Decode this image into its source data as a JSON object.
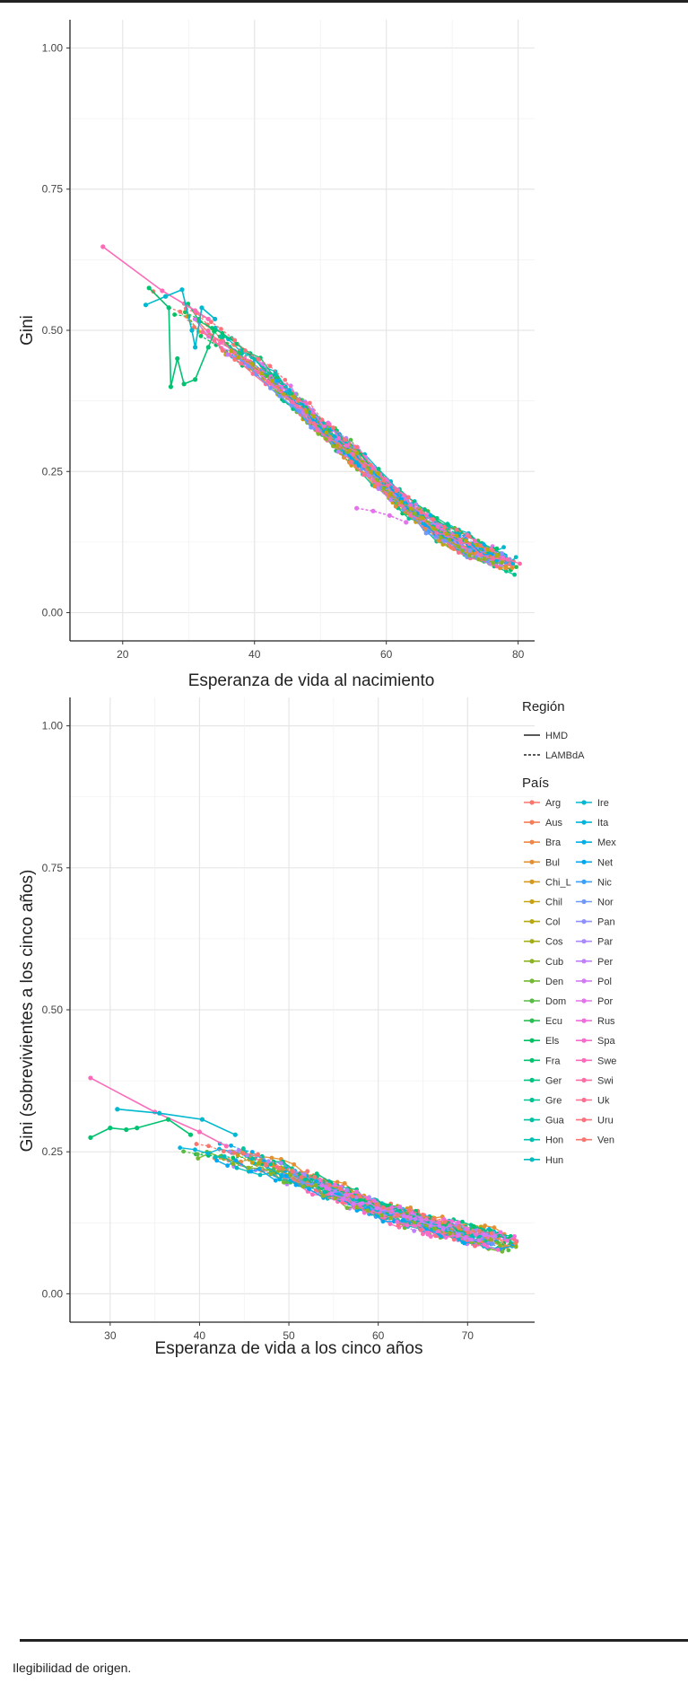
{
  "footnote": "Ilegibilidad de origen.",
  "colors": {
    "Arg": "#F8766D",
    "Aus": "#F57E59",
    "Bra": "#EE8747",
    "Bul": "#E39032",
    "Chi_L": "#D6991F",
    "Chil": "#C7A112",
    "Col": "#B6A80F",
    "Cos": "#A3AE17",
    "Cub": "#8DB325",
    "Den": "#74B834",
    "Dom": "#57BC43",
    "Ecu": "#2ABF52",
    "Els": "#00C161",
    "Fra": "#00C271",
    "Ger": "#00C381",
    "Gre": "#00C391",
    "Gua": "#00C2A1",
    "Hon": "#00C0B1",
    "Hun": "#00BDC0",
    "Ire": "#00B9CF",
    "Ita": "#00B4DC",
    "Mex": "#00AEE8",
    "Net": "#00A8F2",
    "Nic": "#3AA0F9",
    "Nor": "#6E98FD",
    "Pan": "#8F90FF",
    "Par": "#AA88FF",
    "Per": "#C180FB",
    "Pol": "#D37AF4",
    "Por": "#E373EA",
    "Rus": "#EF6EDC",
    "Spa": "#F86BCB",
    "Swe": "#FD6AB8",
    "Swi": "#FF6BA3",
    "Uk": "#FF6E8F",
    "Uru": "#FD727C",
    "Ven": "#F8766D"
  },
  "legend": {
    "region_title": "Región",
    "region_items": [
      "HMD",
      "LAMBdA"
    ],
    "country_title": "País",
    "countries_col1": [
      "Arg",
      "Aus",
      "Bra",
      "Bul",
      "Chi_L",
      "Chil",
      "Col",
      "Cos",
      "Cub",
      "Den",
      "Dom",
      "Ecu",
      "Els",
      "Fra",
      "Ger",
      "Gre",
      "Gua",
      "Hon",
      "Hun"
    ],
    "countries_col2": [
      "Ire",
      "Ita",
      "Mex",
      "Net",
      "Nic",
      "Nor",
      "Pan",
      "Par",
      "Per",
      "Pol",
      "Por",
      "Rus",
      "Spa",
      "Swe",
      "Swi",
      "Uk",
      "Uru",
      "Ven"
    ]
  },
  "chart_data": [
    {
      "type": "scatter",
      "xlabel": "Esperanza de vida al nacimiento",
      "ylabel": "Gini",
      "xlim": [
        12,
        82.5
      ],
      "ylim": [
        -0.05,
        1.05
      ],
      "xticks": [
        20,
        40,
        60,
        80
      ],
      "yticks": [
        0.0,
        0.25,
        0.5,
        0.75,
        1.0
      ],
      "ytick_labels": [
        "0.00",
        "0.25",
        "0.50",
        "0.75",
        "1.00"
      ],
      "grid": true,
      "trend": [
        [
          17,
          0.65
        ],
        [
          25,
          0.57
        ],
        [
          30,
          0.53
        ],
        [
          35,
          0.48
        ],
        [
          40,
          0.44
        ],
        [
          45,
          0.39
        ],
        [
          50,
          0.33
        ],
        [
          55,
          0.28
        ],
        [
          60,
          0.225
        ],
        [
          65,
          0.17
        ],
        [
          70,
          0.13
        ],
        [
          75,
          0.105
        ],
        [
          80,
          0.085
        ]
      ],
      "spread": 0.018,
      "x_range": [
        24,
        80
      ],
      "labeled_series": [
        {
          "name": "Swe",
          "line": "solid",
          "points": [
            [
              17,
              0.648
            ],
            [
              26,
              0.57
            ],
            [
              31,
              0.535
            ],
            [
              33,
              0.52
            ]
          ]
        },
        {
          "name": "Ire",
          "line": "solid",
          "points": [
            [
              23.5,
              0.545
            ],
            [
              26.5,
              0.56
            ],
            [
              29,
              0.572
            ],
            [
              30.5,
              0.5
            ],
            [
              31,
              0.47
            ],
            [
              32,
              0.54
            ],
            [
              34,
              0.52
            ]
          ]
        },
        {
          "name": "Fra",
          "line": "solid",
          "points": [
            [
              24,
              0.575
            ],
            [
              27,
              0.54
            ],
            [
              27.3,
              0.4
            ],
            [
              28.3,
              0.45
            ],
            [
              29.3,
              0.405
            ],
            [
              31,
              0.413
            ],
            [
              33,
              0.47
            ],
            [
              34,
              0.5
            ]
          ]
        },
        {
          "name": "Por",
          "line": "dotted",
          "points": [
            [
              55.5,
              0.185
            ],
            [
              58,
              0.18
            ],
            [
              60.5,
              0.172
            ],
            [
              63,
              0.16
            ]
          ]
        }
      ],
      "series": [
        {
          "name": "Arg",
          "region": "LAMBdA"
        },
        {
          "name": "Aus",
          "region": "HMD"
        },
        {
          "name": "Bra",
          "region": "LAMBdA"
        },
        {
          "name": "Bul",
          "region": "HMD"
        },
        {
          "name": "Chi_L",
          "region": "LAMBdA"
        },
        {
          "name": "Chil",
          "region": "LAMBdA"
        },
        {
          "name": "Col",
          "region": "LAMBdA"
        },
        {
          "name": "Cos",
          "region": "LAMBdA"
        },
        {
          "name": "Cub",
          "region": "LAMBdA"
        },
        {
          "name": "Den",
          "region": "HMD"
        },
        {
          "name": "Dom",
          "region": "LAMBdA"
        },
        {
          "name": "Ecu",
          "region": "LAMBdA"
        },
        {
          "name": "Els",
          "region": "LAMBdA"
        },
        {
          "name": "Fra",
          "region": "HMD"
        },
        {
          "name": "Ger",
          "region": "HMD"
        },
        {
          "name": "Gre",
          "region": "HMD"
        },
        {
          "name": "Gua",
          "region": "LAMBdA"
        },
        {
          "name": "Hon",
          "region": "LAMBdA"
        },
        {
          "name": "Hun",
          "region": "HMD"
        },
        {
          "name": "Ire",
          "region": "HMD"
        },
        {
          "name": "Ita",
          "region": "HMD"
        },
        {
          "name": "Mex",
          "region": "LAMBdA"
        },
        {
          "name": "Net",
          "region": "HMD"
        },
        {
          "name": "Nic",
          "region": "LAMBdA"
        },
        {
          "name": "Nor",
          "region": "HMD"
        },
        {
          "name": "Pan",
          "region": "LAMBdA"
        },
        {
          "name": "Par",
          "region": "LAMBdA"
        },
        {
          "name": "Per",
          "region": "LAMBdA"
        },
        {
          "name": "Pol",
          "region": "HMD"
        },
        {
          "name": "Por",
          "region": "HMD"
        },
        {
          "name": "Rus",
          "region": "HMD"
        },
        {
          "name": "Spa",
          "region": "HMD"
        },
        {
          "name": "Swe",
          "region": "HMD"
        },
        {
          "name": "Swi",
          "region": "HMD"
        },
        {
          "name": "Uk",
          "region": "HMD"
        },
        {
          "name": "Uru",
          "region": "LAMBdA"
        },
        {
          "name": "Ven",
          "region": "LAMBdA"
        }
      ]
    },
    {
      "type": "scatter",
      "xlabel": "Esperanza de vida a los cinco años",
      "ylabel": "Gini (sobrevivientes a los cinco años)",
      "xlim": [
        25.5,
        77.5
      ],
      "ylim": [
        -0.05,
        1.05
      ],
      "xticks": [
        30,
        40,
        50,
        60,
        70
      ],
      "yticks": [
        0.0,
        0.25,
        0.5,
        0.75,
        1.0
      ],
      "ytick_labels": [
        "0.00",
        "0.25",
        "0.50",
        "0.75",
        "1.00"
      ],
      "grid": true,
      "legend_position": "right",
      "trend": [
        [
          37,
          0.265
        ],
        [
          42,
          0.25
        ],
        [
          46,
          0.235
        ],
        [
          50,
          0.21
        ],
        [
          55,
          0.18
        ],
        [
          60,
          0.15
        ],
        [
          65,
          0.125
        ],
        [
          70,
          0.105
        ],
        [
          75.5,
          0.087
        ]
      ],
      "spread": 0.017,
      "x_range": [
        38,
        75.5
      ],
      "labeled_series": [
        {
          "name": "Swe",
          "line": "solid",
          "points": [
            [
              27.8,
              0.38
            ],
            [
              35,
              0.32
            ],
            [
              40,
              0.285
            ],
            [
              43,
              0.26
            ]
          ]
        },
        {
          "name": "Ire",
          "line": "solid",
          "points": [
            [
              30.8,
              0.325
            ],
            [
              35.5,
              0.318
            ],
            [
              40.3,
              0.307
            ],
            [
              44,
              0.28
            ]
          ]
        },
        {
          "name": "Fra",
          "line": "solid",
          "points": [
            [
              27.8,
              0.275
            ],
            [
              30,
              0.292
            ],
            [
              31.8,
              0.289
            ],
            [
              33,
              0.292
            ],
            [
              36.5,
              0.307
            ],
            [
              39,
              0.28
            ]
          ]
        }
      ]
    }
  ]
}
